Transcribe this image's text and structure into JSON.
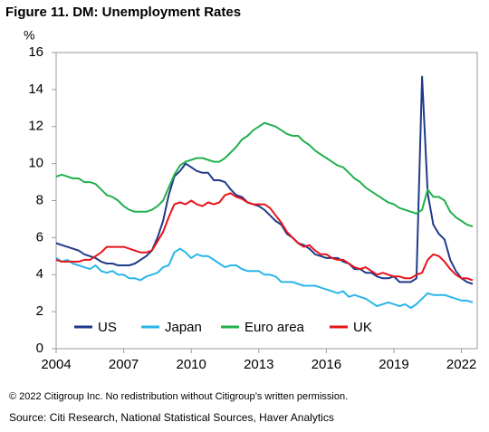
{
  "chart_data": {
    "type": "line",
    "title": "Figure 11. DM: Unemployment Rates",
    "y_label": "%",
    "x": [
      2004,
      2004.25,
      2004.5,
      2004.75,
      2005,
      2005.25,
      2005.5,
      2005.75,
      2006,
      2006.25,
      2006.5,
      2006.75,
      2007,
      2007.25,
      2007.5,
      2007.75,
      2008,
      2008.25,
      2008.5,
      2008.75,
      2009,
      2009.25,
      2009.5,
      2009.75,
      2010,
      2010.25,
      2010.5,
      2010.75,
      2011,
      2011.25,
      2011.5,
      2011.75,
      2012,
      2012.25,
      2012.5,
      2012.75,
      2013,
      2013.25,
      2013.5,
      2013.75,
      2014,
      2014.25,
      2014.5,
      2014.75,
      2015,
      2015.25,
      2015.5,
      2015.75,
      2016,
      2016.25,
      2016.5,
      2016.75,
      2017,
      2017.25,
      2017.5,
      2017.75,
      2018,
      2018.25,
      2018.5,
      2018.75,
      2019,
      2019.25,
      2019.5,
      2019.75,
      2020,
      2020.25,
      2020.5,
      2020.75,
      2021,
      2021.25,
      2021.5,
      2021.75,
      2022,
      2022.25,
      2022.5
    ],
    "series": [
      {
        "name": "US",
        "color": "#1f3a8a",
        "values": [
          5.7,
          5.6,
          5.5,
          5.4,
          5.3,
          5.1,
          5.0,
          4.9,
          4.7,
          4.6,
          4.6,
          4.5,
          4.5,
          4.5,
          4.6,
          4.8,
          5.0,
          5.3,
          6.0,
          6.9,
          8.3,
          9.3,
          9.6,
          10.0,
          9.8,
          9.6,
          9.5,
          9.5,
          9.1,
          9.1,
          9.0,
          8.6,
          8.3,
          8.2,
          7.9,
          7.8,
          7.7,
          7.5,
          7.2,
          6.9,
          6.7,
          6.2,
          6.0,
          5.7,
          5.6,
          5.4,
          5.1,
          5.0,
          4.9,
          4.9,
          4.9,
          4.7,
          4.6,
          4.3,
          4.3,
          4.1,
          4.1,
          3.9,
          3.8,
          3.8,
          3.9,
          3.6,
          3.6,
          3.6,
          3.8,
          14.7,
          8.4,
          6.7,
          6.2,
          5.9,
          4.8,
          4.2,
          3.8,
          3.6,
          3.5
        ]
      },
      {
        "name": "Japan",
        "color": "#29b6e8",
        "values": [
          4.9,
          4.7,
          4.8,
          4.6,
          4.5,
          4.4,
          4.3,
          4.5,
          4.2,
          4.1,
          4.2,
          4.0,
          4.0,
          3.8,
          3.8,
          3.7,
          3.9,
          4.0,
          4.1,
          4.4,
          4.5,
          5.2,
          5.4,
          5.2,
          4.9,
          5.1,
          5.0,
          5.0,
          4.8,
          4.6,
          4.4,
          4.5,
          4.5,
          4.3,
          4.2,
          4.2,
          4.2,
          4.0,
          4.0,
          3.9,
          3.6,
          3.6,
          3.6,
          3.5,
          3.4,
          3.4,
          3.4,
          3.3,
          3.2,
          3.1,
          3.0,
          3.1,
          2.8,
          2.9,
          2.8,
          2.7,
          2.5,
          2.3,
          2.4,
          2.5,
          2.4,
          2.3,
          2.4,
          2.2,
          2.4,
          2.7,
          3.0,
          2.9,
          2.9,
          2.9,
          2.8,
          2.7,
          2.6,
          2.6,
          2.5
        ]
      },
      {
        "name": "Euro area",
        "color": "#22b04b",
        "values": [
          9.3,
          9.4,
          9.3,
          9.2,
          9.2,
          9.0,
          9.0,
          8.9,
          8.6,
          8.3,
          8.2,
          8.0,
          7.7,
          7.5,
          7.4,
          7.4,
          7.4,
          7.5,
          7.7,
          8.0,
          8.7,
          9.4,
          9.9,
          10.1,
          10.2,
          10.3,
          10.3,
          10.2,
          10.1,
          10.1,
          10.3,
          10.6,
          10.9,
          11.3,
          11.5,
          11.8,
          12.0,
          12.2,
          12.1,
          12.0,
          11.8,
          11.6,
          11.5,
          11.5,
          11.2,
          11.0,
          10.7,
          10.5,
          10.3,
          10.1,
          9.9,
          9.8,
          9.5,
          9.2,
          9.0,
          8.7,
          8.5,
          8.3,
          8.1,
          7.9,
          7.8,
          7.6,
          7.5,
          7.4,
          7.3,
          7.5,
          8.6,
          8.2,
          8.2,
          8.0,
          7.4,
          7.1,
          6.9,
          6.7,
          6.6
        ]
      },
      {
        "name": "UK",
        "color": "#e8131b",
        "values": [
          4.8,
          4.7,
          4.7,
          4.7,
          4.7,
          4.8,
          4.8,
          5.0,
          5.2,
          5.5,
          5.5,
          5.5,
          5.5,
          5.4,
          5.3,
          5.2,
          5.2,
          5.3,
          5.8,
          6.3,
          7.1,
          7.8,
          7.9,
          7.8,
          8.0,
          7.8,
          7.7,
          7.9,
          7.8,
          7.9,
          8.3,
          8.4,
          8.2,
          8.1,
          7.9,
          7.8,
          7.8,
          7.8,
          7.6,
          7.2,
          6.8,
          6.3,
          6.0,
          5.7,
          5.5,
          5.6,
          5.3,
          5.1,
          5.1,
          4.9,
          4.8,
          4.8,
          4.6,
          4.4,
          4.3,
          4.4,
          4.2,
          4.0,
          4.1,
          4.0,
          3.9,
          3.9,
          3.8,
          3.8,
          4.0,
          4.1,
          4.8,
          5.1,
          5.0,
          4.7,
          4.3,
          4.0,
          3.8,
          3.8,
          3.7
        ]
      }
    ],
    "xlim": [
      2004,
      2022.7
    ],
    "xticks": [
      2004,
      2007,
      2010,
      2013,
      2016,
      2019,
      2022
    ],
    "ylim": [
      0,
      16
    ],
    "yticks": [
      0,
      2,
      4,
      6,
      8,
      10,
      12,
      14,
      16
    ],
    "legend": "bottom-left",
    "footnotes": [
      "© 2022 Citigroup Inc. No redistribution without Citigroup’s written permission.",
      "Source: Citi Research, National Statistical Sources, Haver Analytics"
    ]
  }
}
